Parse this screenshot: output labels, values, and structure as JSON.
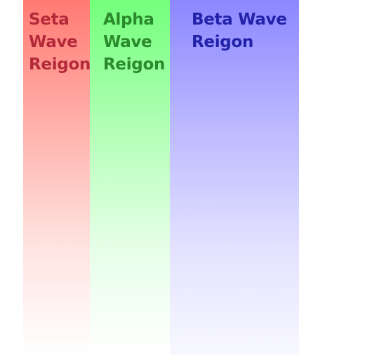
{
  "regions": [
    {
      "id": "seta",
      "label": "Seta\nWave\nReigon",
      "color": "#ff7b73",
      "text_color": "#b3293a"
    },
    {
      "id": "alpha",
      "label": "Alpha\nWave\nReigon",
      "color": "#73ff7b",
      "text_color": "#2b8a2b"
    },
    {
      "id": "beta",
      "label": "Beta Wave\nReigon",
      "color": "#8c87ff",
      "text_color": "#2222a8"
    }
  ]
}
